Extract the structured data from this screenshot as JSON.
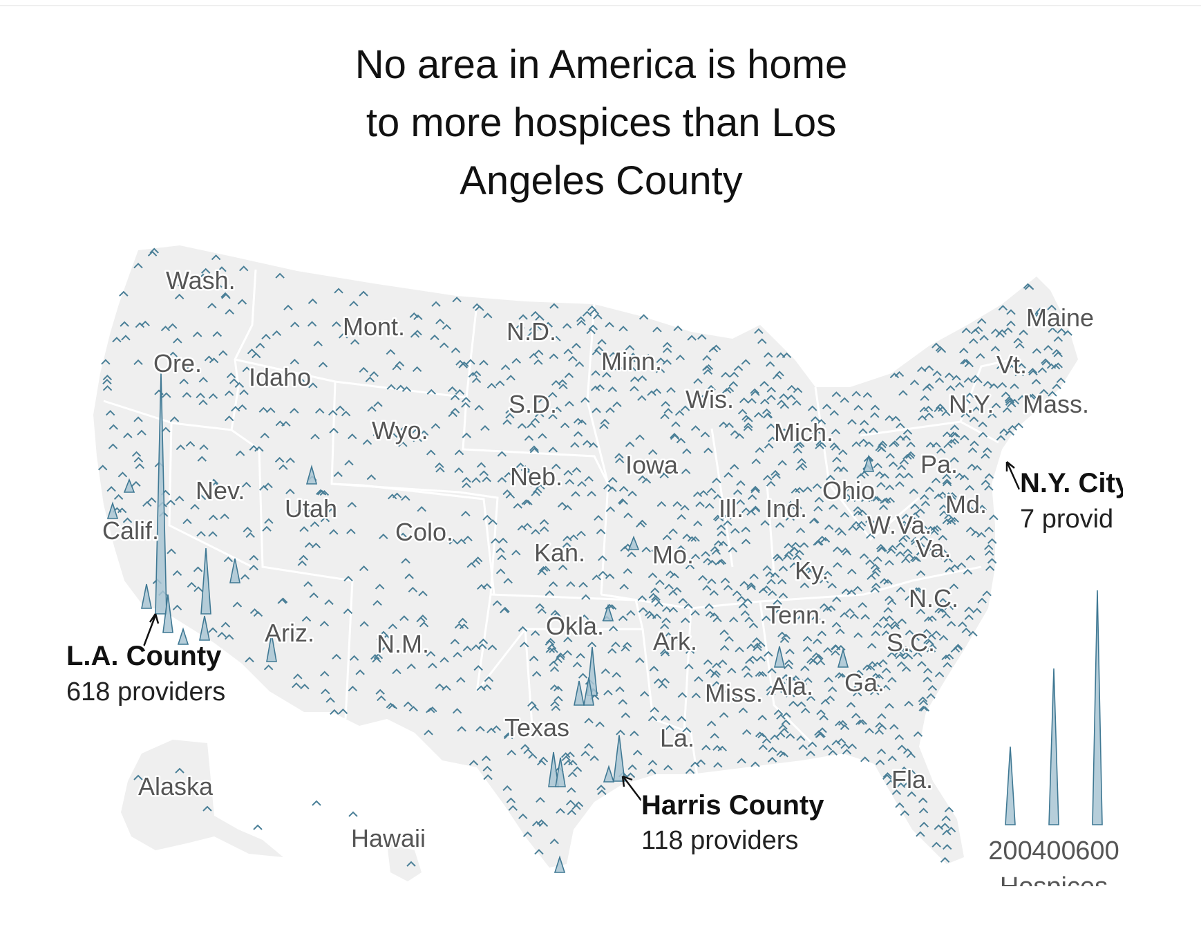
{
  "title_lines": [
    "No area in America is home",
    "to more hospices than Los",
    "Angeles County"
  ],
  "state_labels": [
    {
      "id": "wash",
      "text": "Wash."
    },
    {
      "id": "ore",
      "text": "Ore."
    },
    {
      "id": "idaho",
      "text": "Idaho"
    },
    {
      "id": "mont",
      "text": "Mont."
    },
    {
      "id": "wyo",
      "text": "Wyo."
    },
    {
      "id": "nd",
      "text": "N.D."
    },
    {
      "id": "sd",
      "text": "S.D."
    },
    {
      "id": "neb",
      "text": "Neb."
    },
    {
      "id": "nev",
      "text": "Nev."
    },
    {
      "id": "utah",
      "text": "Utah"
    },
    {
      "id": "colo",
      "text": "Colo."
    },
    {
      "id": "calif",
      "text": "Calif."
    },
    {
      "id": "ariz",
      "text": "Ariz."
    },
    {
      "id": "nm",
      "text": "N.M."
    },
    {
      "id": "kan",
      "text": "Kan."
    },
    {
      "id": "okla",
      "text": "Okla."
    },
    {
      "id": "texas",
      "text": "Texas"
    },
    {
      "id": "minn",
      "text": "Minn."
    },
    {
      "id": "iowa",
      "text": "Iowa"
    },
    {
      "id": "mo",
      "text": "Mo."
    },
    {
      "id": "ark",
      "text": "Ark."
    },
    {
      "id": "la",
      "text": "La."
    },
    {
      "id": "wis",
      "text": "Wis."
    },
    {
      "id": "ill",
      "text": "Ill."
    },
    {
      "id": "mich",
      "text": "Mich."
    },
    {
      "id": "ind",
      "text": "Ind."
    },
    {
      "id": "ohio",
      "text": "Ohio"
    },
    {
      "id": "ky",
      "text": "Ky."
    },
    {
      "id": "tenn",
      "text": "Tenn."
    },
    {
      "id": "miss",
      "text": "Miss."
    },
    {
      "id": "ala",
      "text": "Ala."
    },
    {
      "id": "ga",
      "text": "Ga."
    },
    {
      "id": "fla",
      "text": "Fla."
    },
    {
      "id": "sc",
      "text": "S.C."
    },
    {
      "id": "nc",
      "text": "N.C."
    },
    {
      "id": "va",
      "text": "Va."
    },
    {
      "id": "wva",
      "text": "W.Va."
    },
    {
      "id": "pa",
      "text": "Pa."
    },
    {
      "id": "md",
      "text": "Md."
    },
    {
      "id": "ny",
      "text": "N.Y."
    },
    {
      "id": "vt",
      "text": "Vt."
    },
    {
      "id": "mass",
      "text": "Mass."
    },
    {
      "id": "maine",
      "text": "Maine"
    },
    {
      "id": "alaska",
      "text": "Alaska"
    },
    {
      "id": "hawaii",
      "text": "Hawaii"
    }
  ],
  "callouts": {
    "la_county": {
      "name": "L.A. County",
      "count_text": "618 providers",
      "value": 618
    },
    "harris_county": {
      "name": "Harris County",
      "count_text": "118 providers",
      "value": 118
    },
    "nyc": {
      "name": "N.Y. City",
      "count_text": "7 provid"
    }
  },
  "legend": {
    "ticks": [
      {
        "value": 200,
        "label": "200"
      },
      {
        "value": 400,
        "label": "400"
      },
      {
        "value": 600,
        "label": "600"
      }
    ],
    "title": "Hospices"
  },
  "colors": {
    "land": "#efefef",
    "borders": "#ffffff",
    "spike_fill": "#a9c6d4",
    "spike_stroke": "#3f7893"
  }
}
